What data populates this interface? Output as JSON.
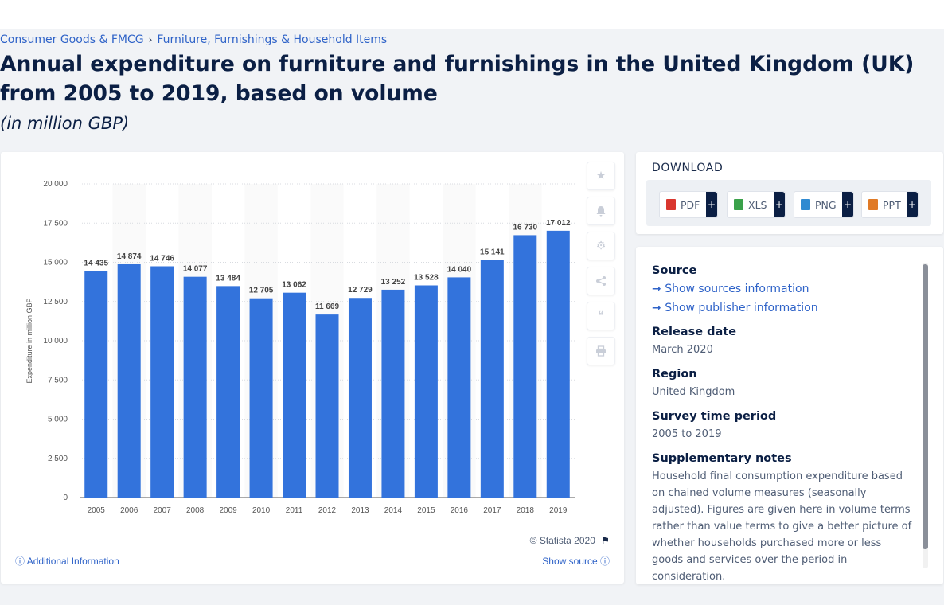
{
  "breadcrumb": {
    "item1": "Consumer Goods & FMCG",
    "separator": "›",
    "item2": "Furniture, Furnishings & Household Items"
  },
  "page": {
    "title": "Annual expenditure on furniture and furnishings in the United Kingdom (UK) from 2005 to 2019, based on volume",
    "subtitle": "(in million GBP)"
  },
  "chart_footer": {
    "copyright": "© Statista 2020",
    "additional_info": "Additional Information",
    "show_source": "Show source"
  },
  "download": {
    "title": "DOWNLOAD",
    "buttons": [
      {
        "label": "PDF",
        "icon": "pdf-file-icon",
        "color": "#d9362e"
      },
      {
        "label": "XLS",
        "icon": "xls-file-icon",
        "color": "#3aa14a"
      },
      {
        "label": "PNG",
        "icon": "png-file-icon",
        "color": "#2f8ad1"
      },
      {
        "label": "PPT",
        "icon": "ppt-file-icon",
        "color": "#e07a26"
      }
    ],
    "plus": "+"
  },
  "info": {
    "source_label": "Source",
    "show_sources": "Show sources information",
    "show_publisher": "Show publisher information",
    "release_label": "Release date",
    "release_value": "March 2020",
    "region_label": "Region",
    "region_value": "United Kingdom",
    "period_label": "Survey time period",
    "period_value": "2005 to 2019",
    "notes_label": "Supplementary notes",
    "notes_value": "Household final consumption expenditure based on chained volume measures (seasonally adjusted). Figures are given here in volume terms rather than value terms to give a better picture of whether households purchased more or less goods and services over the period in consideration."
  },
  "colors": {
    "bar": "#3373dc",
    "link": "#2f63c8",
    "navy": "#0b1f44"
  },
  "chart_data": {
    "type": "bar",
    "categories": [
      "2005",
      "2006",
      "2007",
      "2008",
      "2009",
      "2010",
      "2011",
      "2012",
      "2013",
      "2014",
      "2015",
      "2016",
      "2017",
      "2018",
      "2019"
    ],
    "values": [
      14435,
      14874,
      14746,
      14077,
      13484,
      12705,
      13062,
      11669,
      12729,
      13252,
      13528,
      14040,
      15141,
      16730,
      17012
    ],
    "value_labels": [
      "14 435",
      "14 874",
      "14 746",
      "14 077",
      "13 484",
      "12 705",
      "13 062",
      "11 669",
      "12 729",
      "13 252",
      "13 528",
      "14 040",
      "15 141",
      "16 730",
      "17 012"
    ],
    "ylabel": "Expenditure in million GBP",
    "xlabel": "",
    "ylim": [
      0,
      20000
    ],
    "yticks": [
      0,
      2500,
      5000,
      7500,
      10000,
      12500,
      15000,
      17500,
      20000
    ],
    "ytick_labels": [
      "0",
      "2 500",
      "5 000",
      "7 500",
      "10 000",
      "12 500",
      "15 000",
      "17 500",
      "20 000"
    ],
    "grid": true,
    "legend": "none"
  }
}
